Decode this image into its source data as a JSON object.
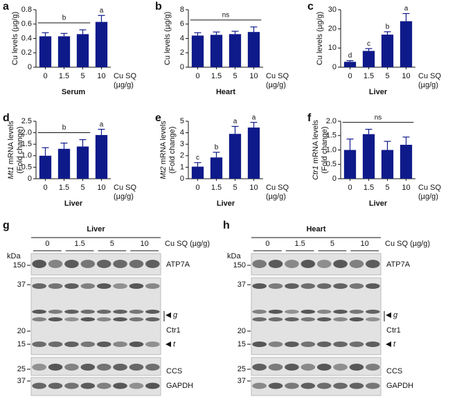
{
  "chart_data": [
    {
      "type": "bar",
      "panel": "a",
      "title": "Serum",
      "ylabel": "Cu levels (µg/g)",
      "xunit": [
        "Cu SQ",
        "(µg/g)"
      ],
      "categories": [
        "0",
        "1.5",
        "5",
        "10"
      ],
      "values": [
        0.43,
        0.43,
        0.46,
        0.63
      ],
      "error": [
        0.05,
        0.04,
        0.06,
        0.09
      ],
      "color": "#0f1a8a",
      "ylim": [
        0,
        0.8
      ],
      "yticks": [
        0,
        0.2,
        0.4,
        0.6,
        0.8
      ],
      "annotations": [
        {
          "text": "b",
          "from": "0",
          "to": "5"
        },
        {
          "text": "a",
          "from": "10",
          "to": "10"
        }
      ]
    },
    {
      "type": "bar",
      "panel": "b",
      "title": "Heart",
      "ylabel": "Cu levels (µg/g)",
      "xunit": [
        "Cu SQ",
        "(µg/g)"
      ],
      "categories": [
        "0",
        "1.5",
        "5",
        "10"
      ],
      "values": [
        4.4,
        4.5,
        4.6,
        4.9
      ],
      "error": [
        0.4,
        0.4,
        0.4,
        0.7
      ],
      "color": "#0f1a8a",
      "ylim": [
        0,
        8
      ],
      "yticks": [
        0,
        2,
        4,
        6,
        8
      ],
      "annotations": [
        {
          "text": "ns",
          "from": "0",
          "to": "10"
        }
      ]
    },
    {
      "type": "bar",
      "panel": "c",
      "title": "Liver",
      "ylabel": "Cu levels (µg/g)",
      "xunit": [
        "Cu SQ",
        "(µg/g)"
      ],
      "categories": [
        "0",
        "1.5",
        "5",
        "10"
      ],
      "values": [
        2.8,
        8.5,
        17,
        24
      ],
      "error": [
        0.6,
        1.2,
        1.5,
        4
      ],
      "color": "#0f1a8a",
      "ylim": [
        0,
        30
      ],
      "yticks": [
        0,
        10,
        20,
        30
      ],
      "annotations": [
        {
          "text": "d",
          "from": "0",
          "to": "0"
        },
        {
          "text": "c",
          "from": "1.5",
          "to": "1.5"
        },
        {
          "text": "b",
          "from": "5",
          "to": "5"
        },
        {
          "text": "a",
          "from": "10",
          "to": "10"
        }
      ]
    },
    {
      "type": "bar",
      "panel": "d",
      "title": "Liver",
      "ylabel_italic": "Mt1",
      "ylabel": "mRNA levels",
      "ylabel_line2": "(Fold change)",
      "xunit": [
        "Cu SQ",
        "(µg/g)"
      ],
      "categories": [
        "0",
        "1.5",
        "5",
        "10"
      ],
      "values": [
        1.0,
        1.3,
        1.4,
        1.9
      ],
      "error": [
        0.35,
        0.25,
        0.3,
        0.25
      ],
      "color": "#0f1a8a",
      "ylim": [
        0,
        2.5
      ],
      "yticks": [
        0,
        0.5,
        {
          "value": 1,
          "label": "1.0"
        },
        1.5,
        {
          "value": 2,
          "label": "2.0"
        },
        2.5
      ],
      "annotations": [
        {
          "text": "b",
          "from": "0",
          "to": "5"
        },
        {
          "text": "a",
          "from": "10",
          "to": "10"
        }
      ]
    },
    {
      "type": "bar",
      "panel": "e",
      "title": "Liver",
      "ylabel_italic": "Mt2",
      "ylabel": "mRNA levels",
      "ylabel_line2": "(Fold change)",
      "xunit": [
        "Cu SQ",
        "(µg/g)"
      ],
      "categories": [
        "0",
        "1.5",
        "5",
        "10"
      ],
      "values": [
        1.05,
        1.85,
        3.9,
        4.45
      ],
      "error": [
        0.35,
        0.45,
        0.65,
        0.45
      ],
      "color": "#0f1a8a",
      "ylim": [
        0,
        5
      ],
      "yticks": [
        0,
        1,
        2,
        3,
        4,
        5
      ],
      "annotations": [
        {
          "text": "c",
          "from": "0",
          "to": "0"
        },
        {
          "text": "b",
          "from": "1.5",
          "to": "1.5"
        },
        {
          "text": "a",
          "from": "5",
          "to": "5"
        },
        {
          "text": "a",
          "from": "10",
          "to": "10"
        }
      ]
    },
    {
      "type": "bar",
      "panel": "f",
      "title": "Liver",
      "ylabel_italic": "Ctr1",
      "ylabel": "mRNA levels",
      "ylabel_line2": "(Fold change)",
      "xunit": [
        "Cu SQ",
        "(µg/g)"
      ],
      "categories": [
        "0",
        "1.5",
        "5",
        "10"
      ],
      "values": [
        1.0,
        1.55,
        1.0,
        1.18
      ],
      "error": [
        0.38,
        0.17,
        0.3,
        0.27
      ],
      "color": "#0f1a8a",
      "ylim": [
        0,
        2.0
      ],
      "yticks": [
        0,
        0.5,
        {
          "value": 1,
          "label": "1.0"
        },
        1.5,
        {
          "value": 2,
          "label": "2.0"
        }
      ],
      "annotations": [
        {
          "text": "ns",
          "from": "0",
          "to": "10"
        }
      ]
    }
  ],
  "blots": [
    {
      "panel": "g",
      "tissue": "Liver",
      "doses": [
        "0",
        "1.5",
        "5",
        "10"
      ],
      "unit": "Cu SQ (µg/g)",
      "kda": "kDa",
      "markers": [
        150,
        37,
        20,
        15,
        25,
        37
      ],
      "proteins": [
        "ATP7A",
        "Ctr1",
        "CCS",
        "GAPDH"
      ],
      "arrows": [
        "g",
        "t"
      ]
    },
    {
      "panel": "h",
      "tissue": "Heart",
      "doses": [
        "0",
        "1.5",
        "5",
        "10"
      ],
      "unit": "Cu SQ (µg/g)",
      "kda": "kDa",
      "markers": [
        150,
        37,
        20,
        15,
        25,
        37
      ],
      "proteins": [
        "ATP7A",
        "Ctr1",
        "CCS",
        "GAPDH"
      ],
      "arrows": [
        "g",
        "t"
      ]
    }
  ]
}
